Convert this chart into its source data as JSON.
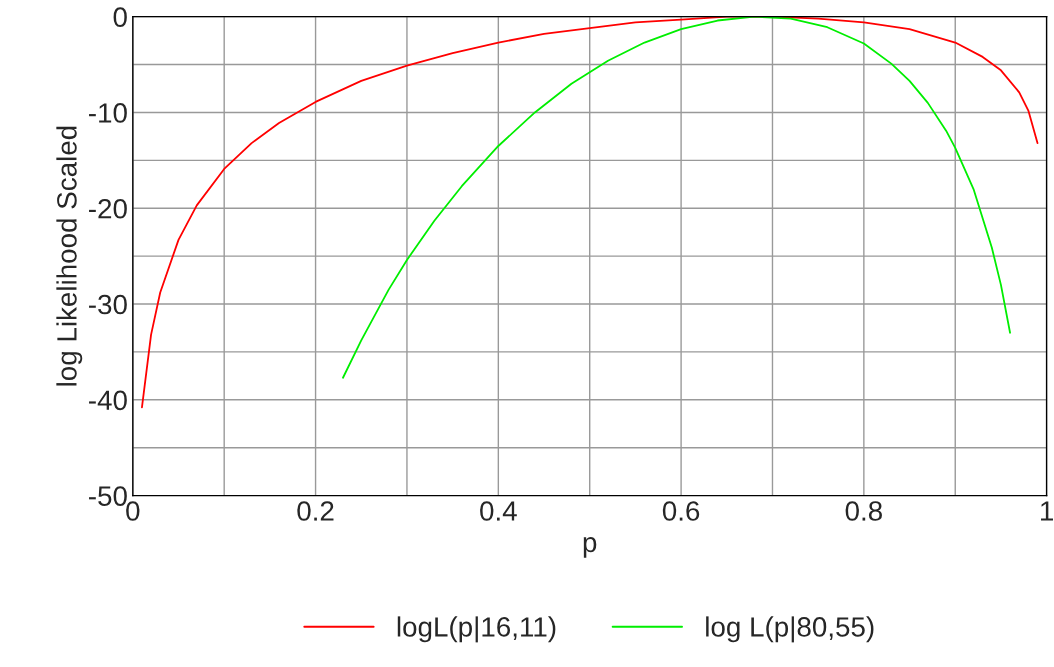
{
  "chart_data": {
    "type": "line",
    "xlabel": "p",
    "ylabel": "log Likelihood Scaled",
    "xlim": [
      0,
      1
    ],
    "ylim": [
      -50,
      0
    ],
    "xticks": [
      0,
      {
        "value": 0.1,
        "label": null
      },
      0.2,
      {
        "value": 0.3,
        "label": null
      },
      0.4,
      {
        "value": 0.5,
        "label": null
      },
      0.6,
      {
        "value": 0.7,
        "label": null
      },
      0.8,
      {
        "value": 0.9,
        "label": null
      },
      1
    ],
    "yticks": [
      -50,
      {
        "value": -45,
        "label": null
      },
      -40,
      {
        "value": -35,
        "label": null
      },
      -30,
      {
        "value": -25,
        "label": null
      },
      -20,
      {
        "value": -15,
        "label": null
      },
      -10,
      {
        "value": -5,
        "label": null
      },
      0
    ],
    "grid": true,
    "legend": "bottom",
    "marker": "none",
    "line_style": "solid",
    "series": [
      {
        "name": "logL(p|16,11)",
        "color": "#ff0000",
        "x": [
          0.01,
          0.02,
          0.03,
          0.05,
          0.07,
          0.1,
          0.13,
          0.16,
          0.2,
          0.25,
          0.3,
          0.35,
          0.4,
          0.45,
          0.5,
          0.55,
          0.6,
          0.65,
          0.7,
          0.75,
          0.8,
          0.85,
          0.9,
          0.93,
          0.95,
          0.97,
          0.98,
          0.99
        ],
        "values": [
          -40.8,
          -33.2,
          -28.8,
          -23.3,
          -19.7,
          -15.9,
          -13.2,
          -11.1,
          -8.9,
          -6.7,
          -5.1,
          -3.8,
          -2.7,
          -1.8,
          -1.2,
          -0.6,
          -0.3,
          0.0,
          0.0,
          -0.2,
          -0.6,
          -1.3,
          -2.7,
          -4.2,
          -5.6,
          -7.9,
          -9.8,
          -13.2
        ]
      },
      {
        "name": "log L(p|80,55)",
        "color": "#00ee00",
        "x": [
          0.23,
          0.25,
          0.28,
          0.3,
          0.33,
          0.36,
          0.4,
          0.44,
          0.48,
          0.52,
          0.56,
          0.6,
          0.64,
          0.68,
          0.72,
          0.76,
          0.8,
          0.83,
          0.85,
          0.87,
          0.89,
          0.9,
          0.92,
          0.94,
          0.95,
          0.96
        ],
        "values": [
          -37.7,
          -33.8,
          -28.5,
          -25.4,
          -21.3,
          -17.7,
          -13.5,
          -10.0,
          -7.0,
          -4.6,
          -2.7,
          -1.3,
          -0.4,
          0.0,
          -0.2,
          -1.1,
          -2.8,
          -4.9,
          -6.7,
          -9.0,
          -11.9,
          -13.7,
          -18.0,
          -24.1,
          -28.0,
          -33.0
        ]
      }
    ]
  }
}
